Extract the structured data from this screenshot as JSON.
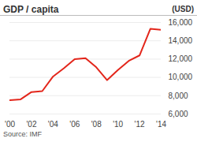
{
  "chart_data": {
    "type": "line",
    "title": "GDP / capita",
    "y_label": "(USD)",
    "source": "Source: IMF",
    "x": [
      2000,
      2001,
      2002,
      2003,
      2004,
      2005,
      2006,
      2007,
      2008,
      2009,
      2010,
      2011,
      2012,
      2013,
      2014
    ],
    "values": [
      7500,
      7600,
      8400,
      8500,
      10100,
      11000,
      12000,
      12100,
      11100,
      9700,
      10800,
      11800,
      12400,
      15300,
      15200
    ],
    "color": "#e3261b",
    "xlim": [
      2000,
      2014
    ],
    "xticks": [
      {
        "value": 2000,
        "label": "'00"
      },
      {
        "value": 2002,
        "label": "'02"
      },
      {
        "value": 2004,
        "label": "'04"
      },
      {
        "value": 2006,
        "label": "'06"
      },
      {
        "value": 2008,
        "label": "'08"
      },
      {
        "value": 2010,
        "label": "'10"
      },
      {
        "value": 2012,
        "label": "'12"
      },
      {
        "value": 2014,
        "label": "'14"
      }
    ],
    "ylim": [
      6000,
      16000
    ],
    "yticks": [
      {
        "value": 6000,
        "label": "6,000"
      },
      {
        "value": 8000,
        "label": "8,000"
      },
      {
        "value": 10000,
        "label": "10,000"
      },
      {
        "value": 12000,
        "label": "12,000"
      },
      {
        "value": 14000,
        "label": "14,000"
      },
      {
        "value": 16000,
        "label": "16,000"
      }
    ],
    "grid": true
  }
}
